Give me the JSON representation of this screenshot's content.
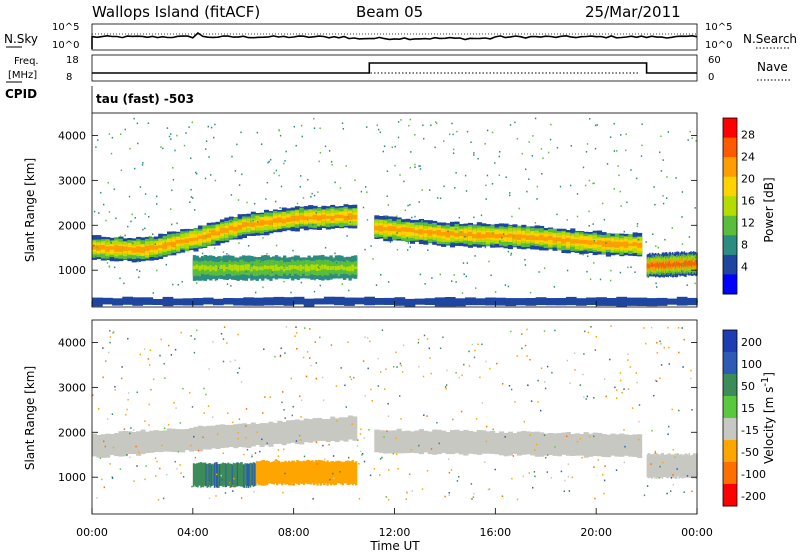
{
  "header": {
    "station": "Wallops Island (fitACF)",
    "beam": "Beam 05",
    "date": "25/Mar/2011"
  },
  "noise_panel": {
    "left_label": "N.Sky",
    "right_label": "N.Search",
    "left_ticks": [
      "10^5",
      "10^0"
    ],
    "right_ticks": [
      "10^5",
      "10^0"
    ]
  },
  "freq_panel": {
    "left_label_line1": "Freq.",
    "left_label_line2": "[MHz]",
    "right_label": "Nave",
    "left_ticks": [
      "18",
      "8"
    ],
    "right_ticks": [
      "60",
      "0"
    ],
    "cpid_label": "CPID",
    "cpid_text": "tau (fast) -503",
    "nave_step": {
      "x_hours": [
        0,
        11,
        11,
        22,
        22,
        24
      ],
      "levels": [
        "low",
        "low",
        "high",
        "high",
        "low",
        "low"
      ]
    }
  },
  "chart_data": [
    {
      "type": "heatmap",
      "name": "power",
      "ylabel": "Slant Range [km]",
      "xlim_hours": [
        0,
        24
      ],
      "ylim": [
        180,
        4500
      ],
      "yticks": [
        1000,
        2000,
        3000,
        4000
      ],
      "colorbar": {
        "label": "Power [dB]",
        "ticks": [
          "28",
          "24",
          "20",
          "16",
          "12",
          "8",
          "4"
        ],
        "colors": [
          "#ff0000",
          "#ff5a00",
          "#ff9c00",
          "#ffd200",
          "#b4dc00",
          "#5abe3c",
          "#2d8c82",
          "#1e46a0",
          "#0000ff"
        ]
      },
      "bands": [
        {
          "x": [
            0,
            2,
            4,
            6,
            8,
            10.5
          ],
          "center_km": [
            1500,
            1450,
            1700,
            2000,
            2150,
            2200
          ],
          "value_db": 24
        },
        {
          "x": [
            11.2,
            14,
            17,
            20,
            21.8
          ],
          "center_km": [
            1950,
            1800,
            1750,
            1600,
            1550
          ],
          "value_db": 24
        },
        {
          "x": [
            22,
            24
          ],
          "center_km": [
            1100,
            1150
          ],
          "value_db": 28
        },
        {
          "x": [
            4,
            10.5
          ],
          "center_km": [
            1050,
            1050
          ],
          "value_db": 12
        },
        {
          "x": [
            0,
            24
          ],
          "center_km": [
            300,
            300
          ],
          "value_db": 4
        }
      ]
    },
    {
      "type": "heatmap",
      "name": "velocity",
      "ylabel": "Slant Range [km]",
      "xlabel": "Time UT",
      "xlim_hours": [
        0,
        24
      ],
      "ylim": [
        180,
        4500
      ],
      "yticks": [
        1000,
        2000,
        3000,
        4000
      ],
      "xticks": [
        "00:00",
        "04:00",
        "08:00",
        "12:00",
        "16:00",
        "20:00",
        "00:00"
      ],
      "colorbar": {
        "label_main": "Velocity [m s",
        "label_sup": "-1",
        "label_end": "]",
        "ticks": [
          "200",
          "100",
          "50",
          "15",
          "-15",
          "-50",
          "-100",
          "-200"
        ],
        "colors": [
          "#1e3cb4",
          "#2d5ab4",
          "#3c8c5a",
          "#5ac83c",
          "#c8c8c3",
          "#ffa500",
          "#ff6e00",
          "#ff0000"
        ]
      },
      "bands": [
        {
          "x": [
            0,
            10.5
          ],
          "center_km": [
            1700,
            2100
          ],
          "value": 0
        },
        {
          "x": [
            11.2,
            21.8
          ],
          "center_km": [
            1800,
            1700
          ],
          "value": 0
        },
        {
          "x": [
            4,
            6.5
          ],
          "center_km": [
            1050,
            1050
          ],
          "value": 70
        },
        {
          "x": [
            6.5,
            10.5
          ],
          "center_km": [
            1100,
            1100
          ],
          "value": -50
        },
        {
          "x": [
            22,
            24
          ],
          "center_km": [
            1250,
            1250
          ],
          "value": 0
        }
      ]
    }
  ]
}
